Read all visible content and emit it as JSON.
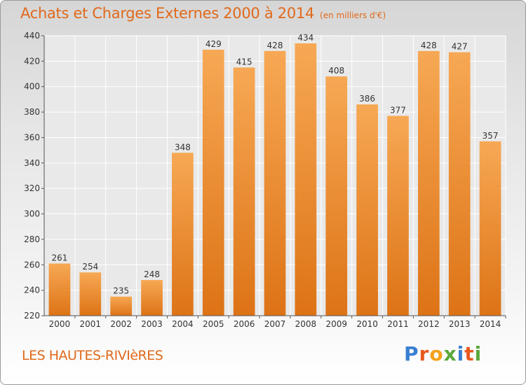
{
  "header": {
    "title": "Achats et Charges Externes 2000 à 2014",
    "unit": "(en milliers d'€)"
  },
  "footer": {
    "commune": "LES HAUTES-RIVIèRES",
    "brand": "Proxiti",
    "brand_colors": [
      "#3a7fd0",
      "#e8591e",
      "#f4a21b",
      "#5aa83a",
      "#3a7fd0",
      "#e8591e",
      "#5aa83a"
    ]
  },
  "colors": {
    "bar_light": "#f7a854",
    "bar_dark": "#dd7316",
    "title": "#e0691b",
    "grid": "#ffffff"
  },
  "chart_data": {
    "type": "bar",
    "categories": [
      "2000",
      "2001",
      "2002",
      "2003",
      "2004",
      "2005",
      "2006",
      "2007",
      "2008",
      "2009",
      "2010",
      "2011",
      "2012",
      "2013",
      "2014"
    ],
    "values": [
      261,
      254,
      235,
      248,
      348,
      429,
      415,
      428,
      434,
      408,
      386,
      377,
      428,
      427,
      357
    ],
    "ylim": [
      220,
      440
    ],
    "yticks": [
      220,
      240,
      260,
      280,
      300,
      320,
      340,
      360,
      380,
      400,
      420,
      440
    ],
    "grid": true
  }
}
